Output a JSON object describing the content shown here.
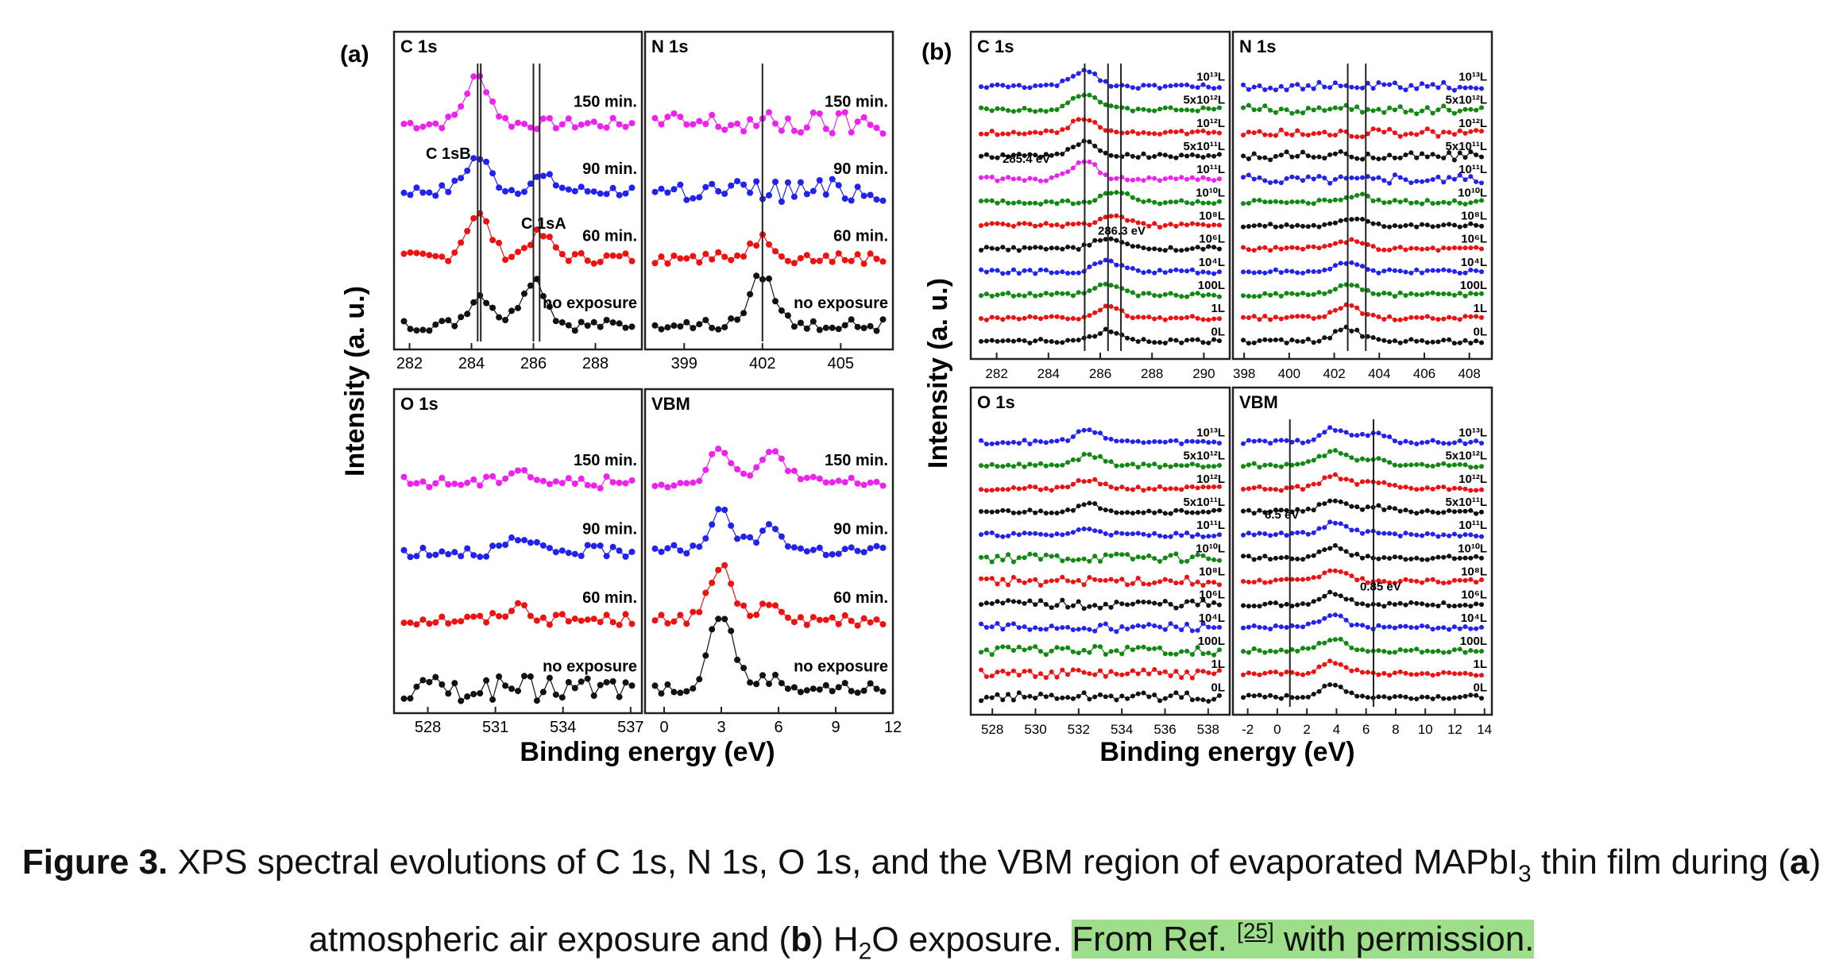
{
  "figure": {
    "panel_a_label": "(a)",
    "panel_b_label": "(b)",
    "ylabel": "Intensity (a. u.)",
    "xlabel": "Binding energy (eV)",
    "colors": {
      "magenta": "#ee22ee",
      "blue": "#2222ee",
      "red": "#ee1111",
      "black": "#111111",
      "green": "#118811"
    }
  },
  "chart_data": [
    {
      "type": "scatter",
      "panel": "a",
      "title": "C 1s",
      "xticks": [
        "282",
        "284",
        "286",
        "288"
      ],
      "xlim": [
        281.5,
        289.5
      ],
      "series": [
        {
          "name": "150 min.",
          "color": "#ee22ee",
          "peaks": [
            [
              284.2,
              1.4
            ]
          ]
        },
        {
          "name": "90 min.",
          "color": "#2222ee",
          "peaks": [
            [
              284.2,
              1.0
            ],
            [
              286.3,
              0.4
            ]
          ]
        },
        {
          "name": "60 min.",
          "color": "#ee1111",
          "peaks": [
            [
              284.2,
              1.3
            ],
            [
              286.2,
              0.7
            ]
          ]
        },
        {
          "name": "no exposure",
          "color": "#111111",
          "peaks": [
            [
              284.3,
              0.9
            ],
            [
              286.0,
              1.4
            ]
          ]
        }
      ],
      "annotations": [
        "C 1sB",
        "C 1sA"
      ],
      "markers": [
        284.2,
        286.2,
        284.3,
        286.0
      ]
    },
    {
      "type": "scatter",
      "panel": "a",
      "title": "N 1s",
      "xticks": [
        "399",
        "402",
        "405"
      ],
      "xlim": [
        397.5,
        407
      ],
      "series": [
        {
          "name": "150 min.",
          "color": "#ee22ee",
          "peaks": []
        },
        {
          "name": "90 min.",
          "color": "#2222ee",
          "peaks": []
        },
        {
          "name": "60 min.",
          "color": "#ee1111",
          "peaks": [
            [
              402.0,
              0.6
            ]
          ]
        },
        {
          "name": "no exposure",
          "color": "#111111",
          "peaks": [
            [
              402.0,
              1.5
            ]
          ]
        }
      ],
      "markers": [
        402.0
      ]
    },
    {
      "type": "scatter",
      "panel": "a",
      "title": "O 1s",
      "xticks": [
        "528",
        "531",
        "534",
        "537"
      ],
      "xlim": [
        526.5,
        537.5
      ],
      "series": [
        {
          "name": "150 min.",
          "color": "#ee22ee",
          "peaks": [
            [
              532,
              0.4
            ]
          ]
        },
        {
          "name": "90 min.",
          "color": "#2222ee",
          "peaks": [
            [
              532,
              0.3
            ]
          ]
        },
        {
          "name": "60 min.",
          "color": "#ee1111",
          "peaks": [
            [
              532,
              0.4
            ]
          ]
        },
        {
          "name": "no exposure",
          "color": "#111111",
          "peaks": []
        }
      ]
    },
    {
      "type": "scatter",
      "panel": "a",
      "title": "VBM",
      "xticks": [
        "0",
        "3",
        "6",
        "9",
        "12"
      ],
      "xlim": [
        -1,
        12
      ],
      "series": [
        {
          "name": "150 min.",
          "color": "#ee22ee",
          "peaks": [
            [
              3,
              1.0
            ],
            [
              5.8,
              0.9
            ]
          ]
        },
        {
          "name": "90 min.",
          "color": "#2222ee",
          "peaks": [
            [
              3,
              1.1
            ],
            [
              5.6,
              0.7
            ]
          ]
        },
        {
          "name": "60 min.",
          "color": "#ee1111",
          "peaks": [
            [
              3,
              1.5
            ],
            [
              5.6,
              0.5
            ]
          ]
        },
        {
          "name": "no exposure",
          "color": "#111111",
          "peaks": [
            [
              3,
              2.2
            ],
            [
              5.5,
              0.3
            ]
          ]
        }
      ]
    },
    {
      "type": "scatter",
      "panel": "b",
      "title": "C 1s",
      "xticks": [
        "282",
        "284",
        "286",
        "288",
        "290"
      ],
      "xlim": [
        281,
        291
      ],
      "series": [
        {
          "name": "10¹³L",
          "color": "#2222ee",
          "peaks": [
            [
              285.4,
              1.4
            ]
          ]
        },
        {
          "name": "5x10¹²L",
          "color": "#118811",
          "peaks": [
            [
              285.4,
              1.4
            ]
          ]
        },
        {
          "name": "10¹²L",
          "color": "#ee1111",
          "peaks": [
            [
              285.4,
              1.3
            ]
          ]
        },
        {
          "name": "5x10¹¹L",
          "color": "#111111",
          "peaks": [
            [
              285.4,
              1.2
            ]
          ]
        },
        {
          "name": "10¹¹L",
          "color": "#ee22ee",
          "peaks": [
            [
              285.4,
              1.5
            ]
          ]
        },
        {
          "name": "10¹⁰L",
          "color": "#118811",
          "peaks": [
            [
              286.6,
              0.9
            ]
          ]
        },
        {
          "name": "10⁸L",
          "color": "#ee1111",
          "peaks": [
            [
              286.6,
              0.9
            ]
          ]
        },
        {
          "name": "10⁶L",
          "color": "#111111",
          "peaks": [
            [
              286.3,
              0.9
            ]
          ]
        },
        {
          "name": "10⁴L",
          "color": "#2222ee",
          "peaks": [
            [
              286.3,
              0.9
            ]
          ]
        },
        {
          "name": "100L",
          "color": "#118811",
          "peaks": [
            [
              286.3,
              0.9
            ]
          ]
        },
        {
          "name": "1L",
          "color": "#ee1111",
          "peaks": [
            [
              286.3,
              0.9
            ]
          ]
        },
        {
          "name": "0L",
          "color": "#111111",
          "peaks": [
            [
              286.3,
              0.9
            ]
          ]
        }
      ],
      "annotations": [
        "285.4 eV",
        "286.3 eV"
      ],
      "markers": [
        285.4,
        286.3,
        286.8
      ]
    },
    {
      "type": "scatter",
      "panel": "b",
      "title": "N 1s",
      "xticks": [
        "398",
        "400",
        "402",
        "404",
        "406",
        "408"
      ],
      "xlim": [
        397.5,
        409
      ],
      "series": [
        {
          "name": "10¹³L",
          "color": "#2222ee",
          "peaks": []
        },
        {
          "name": "5x10¹²L",
          "color": "#118811",
          "peaks": []
        },
        {
          "name": "10¹²L",
          "color": "#ee1111",
          "peaks": []
        },
        {
          "name": "5x10¹¹L",
          "color": "#111111",
          "peaks": []
        },
        {
          "name": "10¹¹L",
          "color": "#2222ee",
          "peaks": []
        },
        {
          "name": "10¹⁰L",
          "color": "#118811",
          "peaks": [
            [
              403.0,
              0.6
            ]
          ]
        },
        {
          "name": "10⁸L",
          "color": "#111111",
          "peaks": [
            [
              403.0,
              0.7
            ]
          ]
        },
        {
          "name": "10⁶L",
          "color": "#ee1111",
          "peaks": [
            [
              402.6,
              0.7
            ]
          ]
        },
        {
          "name": "10⁴L",
          "color": "#2222ee",
          "peaks": [
            [
              402.6,
              0.8
            ]
          ]
        },
        {
          "name": "100L",
          "color": "#118811",
          "peaks": [
            [
              402.6,
              0.9
            ]
          ]
        },
        {
          "name": "1L",
          "color": "#ee1111",
          "peaks": [
            [
              402.6,
              1.0
            ]
          ]
        },
        {
          "name": "0L",
          "color": "#111111",
          "peaks": [
            [
              402.6,
              1.1
            ]
          ]
        }
      ],
      "markers": [
        402.6,
        403.4
      ]
    },
    {
      "type": "scatter",
      "panel": "b",
      "title": "O 1s",
      "xticks": [
        "528",
        "530",
        "532",
        "534",
        "536",
        "538"
      ],
      "xlim": [
        527,
        539
      ],
      "series": [
        {
          "name": "10¹³L",
          "color": "#2222ee",
          "peaks": [
            [
              532.5,
              1.1
            ]
          ]
        },
        {
          "name": "5x10¹²L",
          "color": "#118811",
          "peaks": [
            [
              532.5,
              0.9
            ]
          ]
        },
        {
          "name": "10¹²L",
          "color": "#ee1111",
          "peaks": [
            [
              532.5,
              0.8
            ]
          ]
        },
        {
          "name": "5x10¹¹L",
          "color": "#111111",
          "peaks": [
            [
              532.5,
              0.6
            ]
          ]
        },
        {
          "name": "10¹¹L",
          "color": "#2222ee",
          "peaks": [
            [
              532.5,
              0.5
            ]
          ]
        },
        {
          "name": "10¹⁰L",
          "color": "#118811",
          "peaks": []
        },
        {
          "name": "10⁸L",
          "color": "#ee1111",
          "peaks": []
        },
        {
          "name": "10⁶L",
          "color": "#111111",
          "peaks": []
        },
        {
          "name": "10⁴L",
          "color": "#2222ee",
          "peaks": []
        },
        {
          "name": "100L",
          "color": "#118811",
          "peaks": []
        },
        {
          "name": "1L",
          "color": "#ee1111",
          "peaks": []
        },
        {
          "name": "0L",
          "color": "#111111",
          "peaks": []
        }
      ]
    },
    {
      "type": "scatter",
      "panel": "b",
      "title": "VBM",
      "xticks": [
        "-2",
        "0",
        "2",
        "4",
        "6",
        "8",
        "10",
        "12",
        "14"
      ],
      "xlim": [
        -3,
        14.5
      ],
      "series": [
        {
          "name": "10¹³L",
          "color": "#2222ee",
          "peaks": [
            [
              3.8,
              1.2
            ],
            [
              6.5,
              0.7
            ]
          ]
        },
        {
          "name": "5x10¹²L",
          "color": "#118811",
          "peaks": [
            [
              3.8,
              1.2
            ],
            [
              6.5,
              0.6
            ]
          ]
        },
        {
          "name": "10¹²L",
          "color": "#ee1111",
          "peaks": [
            [
              3.8,
              1.1
            ],
            [
              6.5,
              0.5
            ]
          ]
        },
        {
          "name": "5x10¹¹L",
          "color": "#111111",
          "peaks": [
            [
              3.8,
              1.0
            ],
            [
              6.5,
              0.4
            ]
          ]
        },
        {
          "name": "10¹¹L",
          "color": "#2222ee",
          "peaks": [
            [
              3.8,
              1.0
            ],
            [
              6.5,
              0.3
            ]
          ]
        },
        {
          "name": "10¹⁰L",
          "color": "#111111",
          "peaks": [
            [
              3.8,
              1.0
            ]
          ]
        },
        {
          "name": "10⁸L",
          "color": "#ee1111",
          "peaks": [
            [
              3.8,
              1.0
            ]
          ]
        },
        {
          "name": "10⁶L",
          "color": "#111111",
          "peaks": [
            [
              3.8,
              1.0
            ]
          ]
        },
        {
          "name": "10⁴L",
          "color": "#2222ee",
          "peaks": [
            [
              3.8,
              1.0
            ]
          ]
        },
        {
          "name": "100L",
          "color": "#118811",
          "peaks": [
            [
              3.8,
              1.0
            ]
          ]
        },
        {
          "name": "1L",
          "color": "#ee1111",
          "peaks": [
            [
              3.8,
              1.0
            ]
          ]
        },
        {
          "name": "0L",
          "color": "#111111",
          "peaks": [
            [
              3.8,
              1.0
            ]
          ]
        }
      ],
      "annotations": [
        "6.5 eV",
        "0.85 eV"
      ],
      "markers": [
        0.85,
        6.5
      ]
    }
  ],
  "caption": {
    "label": "Figure 3.",
    "line1_a": " XPS spectral evolutions of C 1s, N 1s, O 1s, and the VBM region of evaporated MAPbI",
    "line1_sub": "3",
    "line1_b": " thin film during (",
    "line1_bold_a": "a",
    "line1_c": ")",
    "line2_a": "atmospheric air exposure and (",
    "line2_bold_b": "b",
    "line2_b": ") H",
    "line2_sub": "2",
    "line2_c": "O exposure. ",
    "hl_a": "From Ref. ",
    "hl_cite": "[25]",
    "hl_b": " with permission."
  }
}
